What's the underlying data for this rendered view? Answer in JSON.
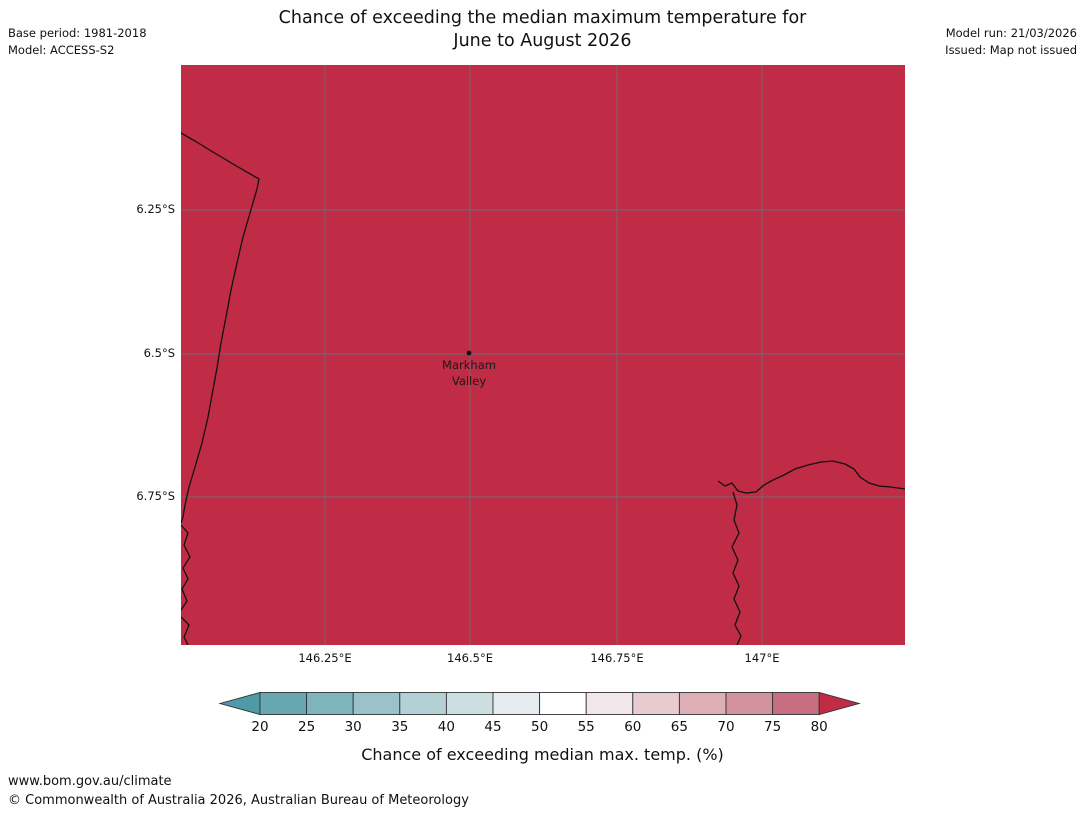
{
  "header": {
    "title_line1": "Chance of exceeding the median maximum temperature for",
    "title_line2": "June to August 2026",
    "meta_left": [
      "Base period: 1981-2018",
      "Model: ACCESS-S2"
    ],
    "meta_right": [
      "Model run: 21/03/2026",
      "Issued: Map not issued"
    ]
  },
  "map": {
    "fill_color": "#c02b46",
    "grid_color": "#6e6e6e",
    "coast_color": "#111111",
    "lat_labels": [
      {
        "text": "6.25°S"
      },
      {
        "text": "6.5°S"
      },
      {
        "text": "6.75°S"
      }
    ],
    "lon_labels": [
      {
        "text": "146.25°E"
      },
      {
        "text": "146.5°E"
      },
      {
        "text": "146.75°E"
      },
      {
        "text": "147°E"
      }
    ],
    "marker": {
      "label_line1": "Markham",
      "label_line2": "Valley"
    }
  },
  "colorbar": {
    "ticks": [
      "20",
      "25",
      "30",
      "35",
      "40",
      "45",
      "50",
      "55",
      "60",
      "65",
      "70",
      "75",
      "80"
    ],
    "segment_colors": [
      "#67a7b1",
      "#80b4bd",
      "#9ac2c9",
      "#b3d0d5",
      "#cddee1",
      "#e6ecee",
      "#ffffff",
      "#f2e7e8",
      "#e7cbd0",
      "#dcafb7",
      "#d2929e",
      "#c76f80"
    ],
    "arrow_left_color": "#4f9aa8",
    "arrow_right_color": "#c02b46",
    "border_color": "#333333",
    "caption": "Chance of exceeding median max. temp. (%)"
  },
  "footer": {
    "line1": "www.bom.gov.au/climate",
    "line2": "© Commonwealth of Australia 2026, Australian Bureau of Meteorology"
  }
}
